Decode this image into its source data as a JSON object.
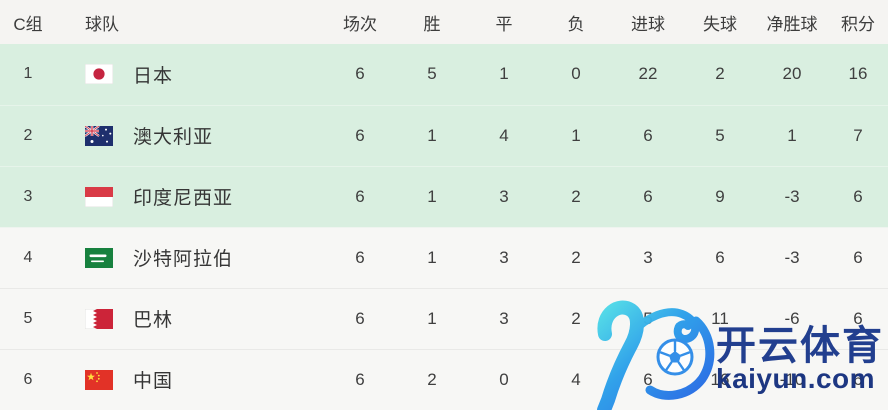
{
  "table": {
    "group_label": "C组",
    "headers": [
      {
        "key": "rank",
        "label": "C组"
      },
      {
        "key": "team",
        "label": "球队"
      },
      {
        "key": "played",
        "label": "场次"
      },
      {
        "key": "win",
        "label": "胜"
      },
      {
        "key": "draw",
        "label": "平"
      },
      {
        "key": "loss",
        "label": "负"
      },
      {
        "key": "gf",
        "label": "进球"
      },
      {
        "key": "ga",
        "label": "失球"
      },
      {
        "key": "gd",
        "label": "净胜球"
      },
      {
        "key": "pts",
        "label": "积分"
      }
    ],
    "stat_keys": [
      "played",
      "win",
      "draw",
      "loss",
      "gf",
      "ga",
      "gd",
      "pts"
    ],
    "rows": [
      {
        "rank": "1",
        "team": "日本",
        "flag": "japan",
        "highlight": true,
        "stats": [
          "6",
          "5",
          "1",
          "0",
          "22",
          "2",
          "20",
          "16"
        ]
      },
      {
        "rank": "2",
        "team": "澳大利亚",
        "flag": "australia",
        "highlight": true,
        "stats": [
          "6",
          "1",
          "4",
          "1",
          "6",
          "5",
          "1",
          "7"
        ]
      },
      {
        "rank": "3",
        "team": "印度尼西亚",
        "flag": "indonesia",
        "highlight": true,
        "stats": [
          "6",
          "1",
          "3",
          "2",
          "6",
          "9",
          "-3",
          "6"
        ]
      },
      {
        "rank": "4",
        "team": "沙特阿拉伯",
        "flag": "saudi-arabia",
        "highlight": false,
        "stats": [
          "6",
          "1",
          "3",
          "2",
          "3",
          "6",
          "-3",
          "6"
        ]
      },
      {
        "rank": "5",
        "team": "巴林",
        "flag": "bahrain",
        "highlight": false,
        "stats": [
          "6",
          "1",
          "3",
          "2",
          "5",
          "11",
          "-6",
          "6"
        ]
      },
      {
        "rank": "6",
        "team": "中国",
        "flag": "china",
        "highlight": false,
        "stats": [
          "6",
          "2",
          "0",
          "4",
          "6",
          "16",
          "-10",
          "6"
        ]
      }
    ]
  },
  "watermark": {
    "brand": "开云体育",
    "domain": "kaiyun.com",
    "logo": "kaiyun-k-football-logo"
  },
  "colors": {
    "highlight_row_bg": "#d9efe0",
    "row_bg": "#f7f7f5",
    "header_bg": "#f5f4f2",
    "text": "#3f3f3f",
    "watermark_text_blue": "#1c3a8c",
    "watermark_domain_blue": "#16317f",
    "logo_gradient_start": "#52dee8",
    "logo_gradient_end": "#2666e4"
  }
}
